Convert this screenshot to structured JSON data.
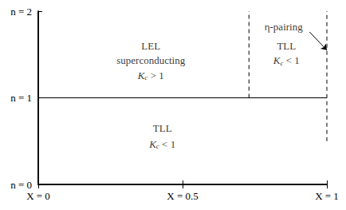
{
  "chart_data": {
    "type": "line",
    "xlim": [
      0,
      1
    ],
    "xticks": [
      {
        "value": 0,
        "label": "X = 0"
      },
      {
        "value": 0.5,
        "label": "X = 0.5"
      },
      {
        "value": 1,
        "label": "X = 1"
      }
    ],
    "ylim": [
      0,
      2
    ],
    "yticks": [
      {
        "value": 0,
        "label": "n = 0"
      },
      {
        "value": 1,
        "label": "n = 1"
      },
      {
        "value": 2,
        "label": "n = 2"
      }
    ],
    "grid": false,
    "lines": [
      {
        "x": [
          0,
          1
        ],
        "y": [
          1,
          1
        ],
        "line_style": "solid"
      },
      {
        "x": [
          0.73,
          0.73
        ],
        "y": [
          1,
          2
        ],
        "line_style": "dashed"
      },
      {
        "x": [
          1,
          1
        ],
        "y": [
          0.5,
          2
        ],
        "line_style": "dashed"
      }
    ],
    "texts": [
      {
        "text": "LEL",
        "x": 0.39,
        "y": 1.6
      },
      {
        "text": "superconducting",
        "x": 0.39,
        "y": 1.43
      },
      {
        "text": "Kc > 1",
        "x": 0.39,
        "y": 1.26
      },
      {
        "text": "TLL",
        "x": 0.86,
        "y": 1.6
      },
      {
        "text": "Kc < 1",
        "x": 0.86,
        "y": 1.43
      },
      {
        "text": "TLL",
        "x": 0.43,
        "y": 0.65
      },
      {
        "text": "Kc < 1",
        "x": 0.43,
        "y": 0.47
      }
    ],
    "annotations": [
      {
        "text": "η-pairing",
        "x": 0.85,
        "y": 1.82,
        "arrow_from": [
          0.94,
          1.76
        ],
        "arrow_to": [
          1,
          1.55
        ]
      }
    ]
  }
}
